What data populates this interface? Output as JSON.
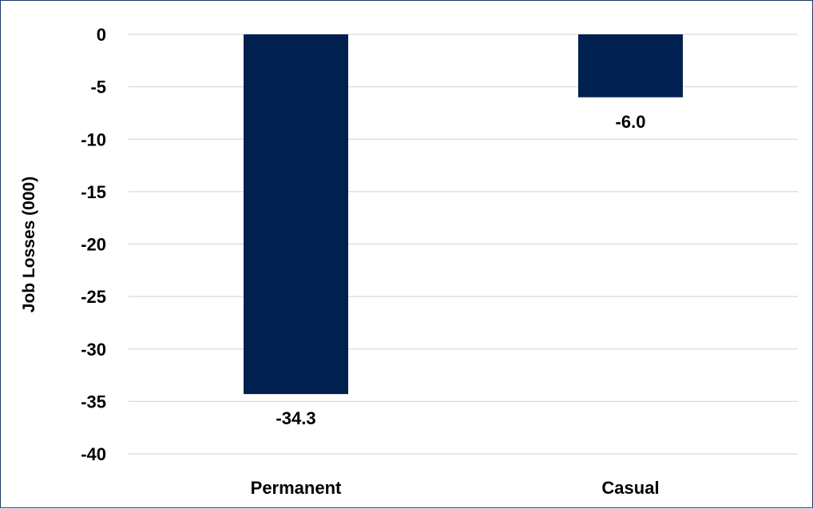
{
  "chart_data": {
    "type": "bar",
    "categories": [
      "Permanent",
      "Casual"
    ],
    "values": [
      -34.3,
      -6.0
    ],
    "data_labels": [
      "-34.3",
      "-6.0"
    ],
    "ylabel": "Job Losses (000)",
    "ylim": [
      -40,
      0
    ],
    "yticks": [
      0,
      -5,
      -10,
      -15,
      -20,
      -25,
      -30,
      -35,
      -40
    ],
    "ytick_labels": [
      "0",
      "-5",
      "-10",
      "-15",
      "-20",
      "-25",
      "-30",
      "-35",
      "-40"
    ],
    "grid": true,
    "legend": "none",
    "bar_color": "#002050"
  }
}
